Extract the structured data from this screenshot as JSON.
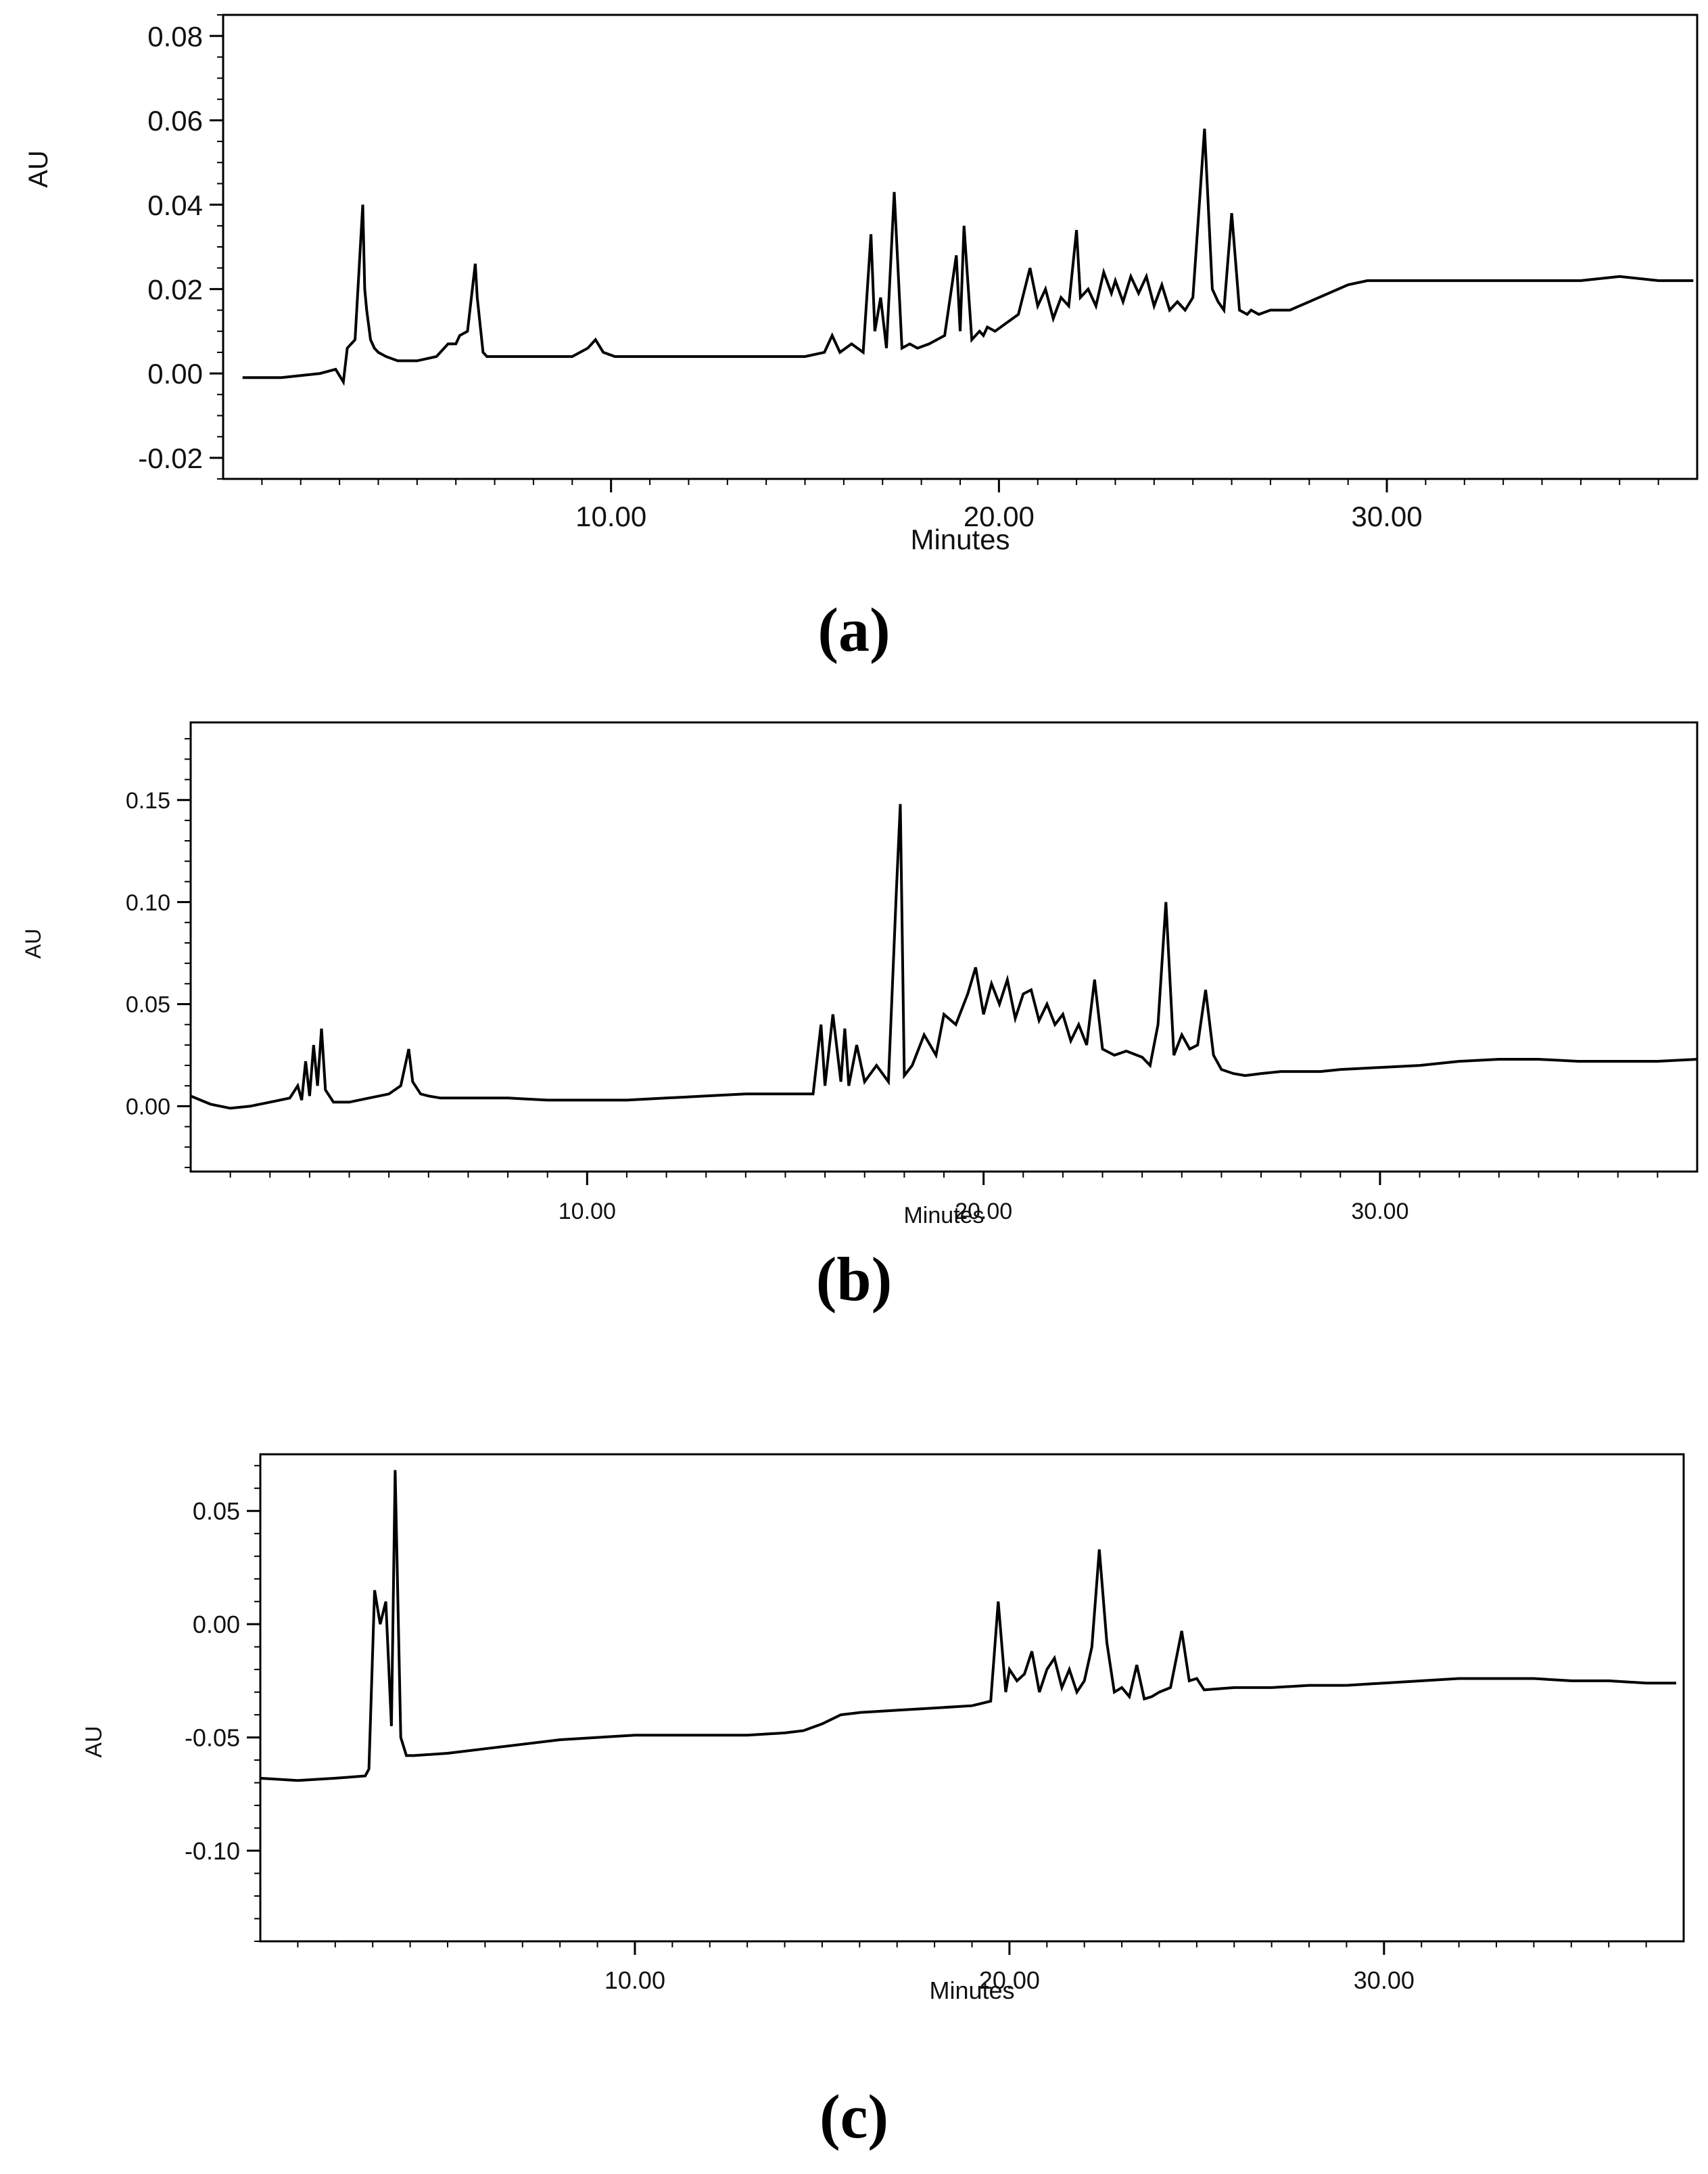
{
  "chart_data": [
    {
      "type": "line",
      "panel_label": "(a)",
      "xlabel": "Minutes",
      "ylabel": "AU",
      "xlim": [
        0,
        38
      ],
      "ylim": [
        -0.025,
        0.085
      ],
      "xticks": [
        10,
        20,
        30
      ],
      "xtick_labels": [
        "10.00",
        "20.00",
        "30.00"
      ],
      "yticks": [
        0.08,
        0.06,
        0.04,
        0.02,
        0.0,
        -0.02
      ],
      "ytick_labels": [
        "0.08",
        "0.06",
        "0.04",
        "0.02",
        "0.00",
        "-0.02"
      ],
      "grid": false,
      "x": [
        0.5,
        1.5,
        2.5,
        2.9,
        3.1,
        3.2,
        3.4,
        3.6,
        3.65,
        3.7,
        3.8,
        3.9,
        4.0,
        4.2,
        4.5,
        5.0,
        5.5,
        5.8,
        6.0,
        6.1,
        6.3,
        6.5,
        6.55,
        6.7,
        6.8,
        7.0,
        7.5,
        8.0,
        9.0,
        9.4,
        9.6,
        9.8,
        10.1,
        10.5,
        11.0,
        12.0,
        13.0,
        14.0,
        15.0,
        15.5,
        15.7,
        15.9,
        16.2,
        16.5,
        16.7,
        16.8,
        16.95,
        17.1,
        17.3,
        17.5,
        17.7,
        17.9,
        18.2,
        18.6,
        18.9,
        19.0,
        19.1,
        19.3,
        19.5,
        19.6,
        19.7,
        19.9,
        20.2,
        20.5,
        20.8,
        21.0,
        21.2,
        21.4,
        21.6,
        21.8,
        22.0,
        22.1,
        22.3,
        22.5,
        22.7,
        22.9,
        23.0,
        23.2,
        23.4,
        23.6,
        23.8,
        24.0,
        24.2,
        24.4,
        24.6,
        24.8,
        25.0,
        25.3,
        25.5,
        25.65,
        25.8,
        26.0,
        26.2,
        26.4,
        26.5,
        26.7,
        27.0,
        27.5,
        28.0,
        28.5,
        29.0,
        29.5,
        30.0,
        31.0,
        32.0,
        33.0,
        34.0,
        35.0,
        36.0,
        37.0,
        37.9
      ],
      "y": [
        -0.001,
        -0.001,
        0.0,
        0.001,
        -0.002,
        0.006,
        0.008,
        0.04,
        0.02,
        0.015,
        0.008,
        0.006,
        0.005,
        0.004,
        0.003,
        0.003,
        0.004,
        0.007,
        0.007,
        0.009,
        0.01,
        0.026,
        0.018,
        0.005,
        0.004,
        0.004,
        0.004,
        0.004,
        0.004,
        0.006,
        0.008,
        0.005,
        0.004,
        0.004,
        0.004,
        0.004,
        0.004,
        0.004,
        0.004,
        0.005,
        0.009,
        0.005,
        0.007,
        0.005,
        0.033,
        0.01,
        0.018,
        0.006,
        0.043,
        0.006,
        0.007,
        0.006,
        0.007,
        0.009,
        0.028,
        0.01,
        0.035,
        0.008,
        0.01,
        0.009,
        0.011,
        0.01,
        0.012,
        0.014,
        0.025,
        0.016,
        0.02,
        0.013,
        0.018,
        0.016,
        0.034,
        0.018,
        0.02,
        0.016,
        0.024,
        0.019,
        0.022,
        0.017,
        0.023,
        0.019,
        0.023,
        0.016,
        0.021,
        0.015,
        0.017,
        0.015,
        0.018,
        0.058,
        0.02,
        0.017,
        0.015,
        0.038,
        0.015,
        0.014,
        0.015,
        0.014,
        0.015,
        0.015,
        0.017,
        0.019,
        0.021,
        0.022,
        0.022,
        0.022,
        0.022,
        0.022,
        0.022,
        0.022,
        0.023,
        0.022,
        0.022
      ]
    },
    {
      "type": "line",
      "panel_label": "(b)",
      "xlabel": "Minutes",
      "ylabel": "AU",
      "xlim": [
        0,
        38
      ],
      "ylim": [
        -0.032,
        0.188
      ],
      "xticks": [
        10,
        20,
        30
      ],
      "xtick_labels": [
        "10.00",
        "20.00",
        "30.00"
      ],
      "yticks": [
        0.15,
        0.1,
        0.05,
        0.0
      ],
      "ytick_labels": [
        "0.15",
        "0.10",
        "0.05",
        "0.00"
      ],
      "grid": false,
      "x": [
        0.0,
        0.5,
        1.0,
        1.5,
        2.0,
        2.5,
        2.7,
        2.8,
        2.9,
        3.0,
        3.1,
        3.2,
        3.3,
        3.4,
        3.6,
        4.0,
        4.5,
        5.0,
        5.3,
        5.5,
        5.6,
        5.8,
        6.0,
        6.3,
        6.5,
        7.0,
        7.5,
        8.0,
        9.0,
        10.0,
        11.0,
        12.0,
        13.0,
        14.0,
        15.0,
        15.5,
        15.7,
        15.9,
        16.0,
        16.2,
        16.4,
        16.5,
        16.6,
        16.8,
        17.0,
        17.3,
        17.6,
        17.8,
        17.9,
        18.0,
        18.2,
        18.5,
        18.8,
        19.0,
        19.3,
        19.6,
        19.8,
        20.0,
        20.2,
        20.4,
        20.6,
        20.8,
        21.0,
        21.2,
        21.4,
        21.6,
        21.8,
        22.0,
        22.2,
        22.4,
        22.6,
        22.8,
        23.0,
        23.3,
        23.6,
        24.0,
        24.2,
        24.4,
        24.6,
        24.8,
        25.0,
        25.2,
        25.4,
        25.6,
        25.8,
        26.0,
        26.3,
        26.6,
        27.0,
        27.5,
        28.0,
        28.5,
        29.0,
        30.0,
        31.0,
        32.0,
        33.0,
        34.0,
        35.0,
        36.0,
        37.0,
        38.0
      ],
      "y": [
        0.005,
        0.001,
        -0.001,
        0.0,
        0.002,
        0.004,
        0.01,
        0.003,
        0.022,
        0.005,
        0.03,
        0.01,
        0.038,
        0.008,
        0.002,
        0.002,
        0.004,
        0.006,
        0.01,
        0.028,
        0.012,
        0.006,
        0.005,
        0.004,
        0.004,
        0.004,
        0.004,
        0.004,
        0.003,
        0.003,
        0.003,
        0.004,
        0.005,
        0.006,
        0.006,
        0.006,
        0.006,
        0.04,
        0.01,
        0.045,
        0.012,
        0.038,
        0.01,
        0.03,
        0.012,
        0.02,
        0.012,
        0.105,
        0.148,
        0.015,
        0.02,
        0.035,
        0.025,
        0.045,
        0.04,
        0.055,
        0.068,
        0.045,
        0.06,
        0.05,
        0.062,
        0.043,
        0.055,
        0.057,
        0.042,
        0.05,
        0.04,
        0.045,
        0.032,
        0.04,
        0.03,
        0.062,
        0.028,
        0.025,
        0.027,
        0.024,
        0.02,
        0.04,
        0.1,
        0.025,
        0.035,
        0.028,
        0.03,
        0.057,
        0.025,
        0.018,
        0.016,
        0.015,
        0.016,
        0.017,
        0.017,
        0.017,
        0.018,
        0.019,
        0.02,
        0.022,
        0.023,
        0.023,
        0.022,
        0.022,
        0.022,
        0.023
      ]
    },
    {
      "type": "line",
      "panel_label": "(c)",
      "xlabel": "Minutes",
      "ylabel": "AU",
      "xlim": [
        0,
        38
      ],
      "ylim": [
        -0.14,
        0.075
      ],
      "xticks": [
        10,
        20,
        30
      ],
      "xtick_labels": [
        "10.00",
        "20.00",
        "30.00"
      ],
      "yticks": [
        0.05,
        0.0,
        -0.05,
        -0.1
      ],
      "ytick_labels": [
        "0.05",
        "0.00",
        "-0.05",
        "-0.10"
      ],
      "grid": false,
      "x": [
        0.0,
        1.0,
        2.0,
        2.8,
        2.9,
        3.05,
        3.2,
        3.35,
        3.5,
        3.6,
        3.75,
        3.9,
        4.1,
        5.0,
        6.0,
        7.0,
        8.0,
        9.0,
        10.0,
        11.0,
        12.0,
        13.0,
        14.0,
        14.5,
        15.0,
        15.5,
        16.0,
        17.0,
        18.0,
        19.0,
        19.5,
        19.7,
        19.9,
        20.0,
        20.2,
        20.4,
        20.6,
        20.8,
        21.0,
        21.2,
        21.4,
        21.6,
        21.8,
        22.0,
        22.2,
        22.4,
        22.6,
        22.8,
        23.0,
        23.2,
        23.4,
        23.6,
        23.8,
        24.0,
        24.3,
        24.6,
        24.8,
        25.0,
        25.2,
        26.0,
        27.0,
        28.0,
        29.0,
        30.0,
        31.0,
        32.0,
        33.0,
        34.0,
        35.0,
        36.0,
        37.0,
        37.8
      ],
      "y": [
        -0.068,
        -0.069,
        -0.068,
        -0.067,
        -0.064,
        0.015,
        0.0,
        0.01,
        -0.045,
        0.068,
        -0.05,
        -0.058,
        -0.058,
        -0.057,
        -0.055,
        -0.053,
        -0.051,
        -0.05,
        -0.049,
        -0.049,
        -0.049,
        -0.049,
        -0.048,
        -0.047,
        -0.044,
        -0.04,
        -0.039,
        -0.038,
        -0.037,
        -0.036,
        -0.034,
        0.01,
        -0.03,
        -0.02,
        -0.025,
        -0.022,
        -0.012,
        -0.03,
        -0.02,
        -0.015,
        -0.028,
        -0.02,
        -0.03,
        -0.025,
        -0.01,
        0.033,
        -0.008,
        -0.03,
        -0.028,
        -0.032,
        -0.018,
        -0.033,
        -0.032,
        -0.03,
        -0.028,
        -0.003,
        -0.025,
        -0.024,
        -0.029,
        -0.028,
        -0.028,
        -0.027,
        -0.027,
        -0.026,
        -0.025,
        -0.024,
        -0.024,
        -0.024,
        -0.025,
        -0.025,
        -0.026,
        -0.026
      ]
    }
  ]
}
